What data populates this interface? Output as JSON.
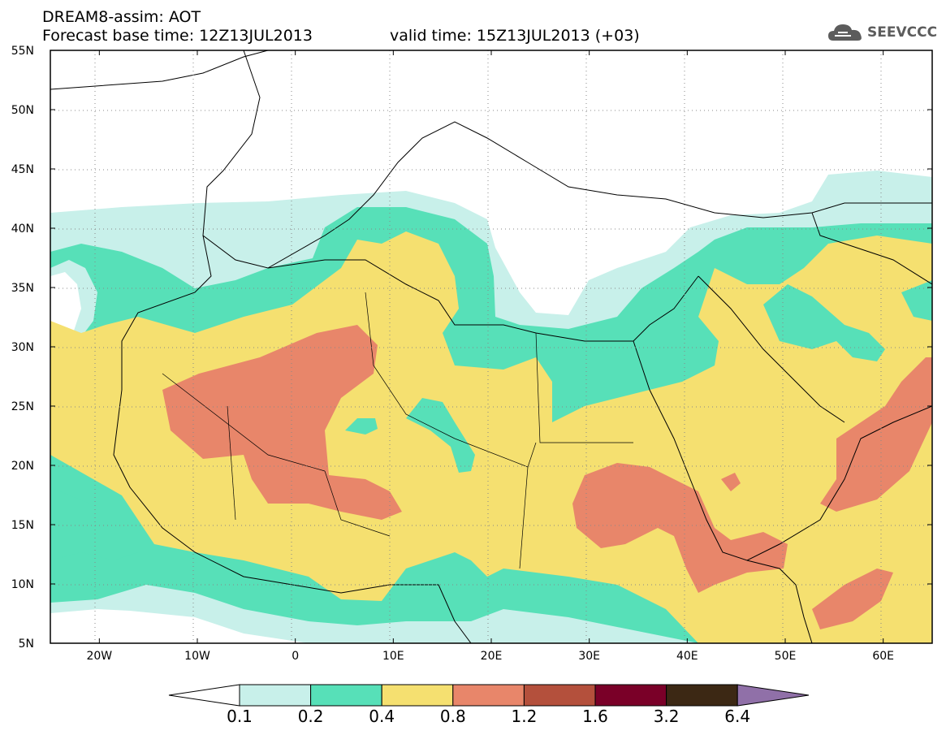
{
  "header": {
    "title_line1": "DREAM8-assim: AOT",
    "title_line2": "Forecast base time: 12Z13JUL2013",
    "valid_time": "valid time: 15Z13JUL2013 (+03)",
    "logo_text": "SEEVCCC",
    "logo_icon": "cloud-icon"
  },
  "map": {
    "projection": "latlon",
    "lon_range": [
      -25,
      65
    ],
    "lat_range": [
      5,
      55
    ],
    "lat_labels": [
      "55N",
      "50N",
      "45N",
      "40N",
      "35N",
      "30N",
      "25N",
      "20N",
      "15N",
      "10N",
      "5N"
    ],
    "lon_labels": [
      "20W",
      "10W",
      "0",
      "10E",
      "20E",
      "30E",
      "40E",
      "50E",
      "60E"
    ],
    "grid": true,
    "field": "AOT",
    "ocean_color": "#ffffff"
  },
  "colorbar": {
    "levels": [
      "0.1",
      "0.2",
      "0.4",
      "0.8",
      "1.2",
      "1.6",
      "3.2",
      "6.4"
    ],
    "colors": [
      "#c8f0ea",
      "#57e0b8",
      "#f5e070",
      "#e8866a",
      "#b4503c",
      "#7a0028",
      "#3c2814",
      "#9070a8"
    ],
    "extend": "both"
  }
}
